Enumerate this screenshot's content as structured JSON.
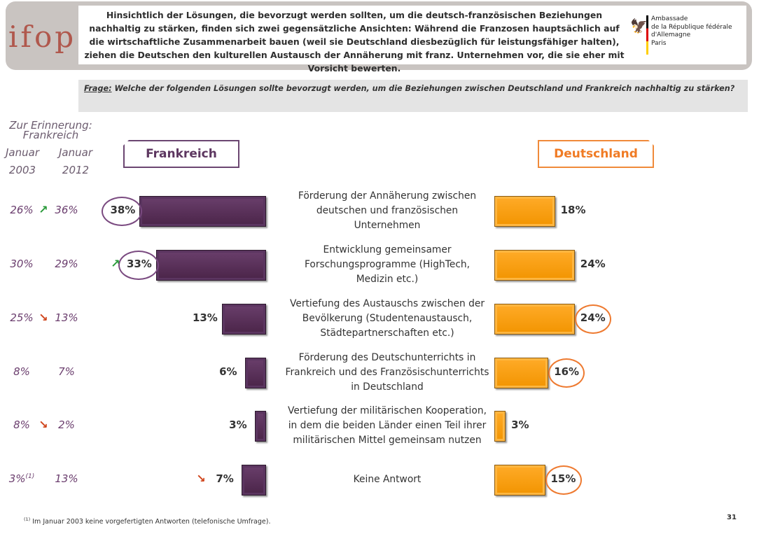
{
  "header": {
    "logo": "ifop",
    "text": "Hinsichtlich der Lösungen, die bevorzugt werden sollten, um die deutsch-französischen Beziehungen nachhaltig zu stärken, finden sich zwei gegensätzliche Ansichten: Während die Franzosen hauptsächlich auf die wirtschaftliche Zusammenarbeit bauen (weil sie Deutschland diesbezüglich für leistungsfähiger halten), ziehen die Deutschen den kulturellen Austausch der Annäherung mit franz. Unternehmen vor, die sie eher mit Vorsicht bewerten.",
    "embassy_lines": [
      "Ambassade",
      "de la République fédérale d'Allemagne",
      "Paris"
    ]
  },
  "question": {
    "label": "Frage:",
    "text": "Welche der folgenden Lösungen sollte bevorzugt werden, um die Beziehungen zwischen Deutschland und Frankreich nachhaltig zu stärken?"
  },
  "recall": {
    "title_line1": "Zur Erinnerung:",
    "title_line2": "Frankreich",
    "col1": [
      "Januar",
      "2003"
    ],
    "col2": [
      "Januar",
      "2012"
    ],
    "rows": [
      {
        "v2003": "26%",
        "v2012": "36%",
        "trend": "up",
        "footnote_mark": ""
      },
      {
        "v2003": "30%",
        "v2012": "29%",
        "trend": "",
        "footnote_mark": ""
      },
      {
        "v2003": "25%",
        "v2012": "13%",
        "trend": "down",
        "footnote_mark": ""
      },
      {
        "v2003": "8%",
        "v2012": "7%",
        "trend": "",
        "footnote_mark": ""
      },
      {
        "v2003": "8%",
        "v2012": "2%",
        "trend": "down",
        "footnote_mark": ""
      },
      {
        "v2003": "3%",
        "v2012": "13%",
        "trend": "",
        "footnote_mark": "(1)"
      }
    ]
  },
  "tabs": {
    "france": "Frankreich",
    "germany": "Deutschland"
  },
  "chart_data": {
    "type": "bar",
    "orientation": "horizontal-butterfly",
    "categories": [
      "Förderung der Annäherung zwischen deutschen und französischen Unternehmen",
      "Entwicklung gemeinsamer Forschungsprogramme (HighTech, Medizin etc.)",
      "Vertiefung des Austauschs zwischen der Bevölkerung (Studentenaustausch, Städtepartnerschaften etc.)",
      "Förderung des Deutschunterrichts in Frankreich und des Französischunterrichts in Deutschland",
      "Vertiefung der militärischen Kooperation, in dem die beiden Länder einen Teil ihrer militärischen Mittel gemeinsam nutzen",
      "Keine Antwort"
    ],
    "category_lines": [
      [
        "Förderung der Annäherung zwischen",
        "deutschen und französischen",
        "Unternehmen"
      ],
      [
        "Entwicklung gemeinsamer",
        "Forschungsprogramme (HighTech,",
        "Medizin etc.)"
      ],
      [
        "Vertiefung des Austauschs zwischen der",
        "Bevölkerung (Studentenaustausch,",
        "Städtepartnerschaften etc.)"
      ],
      [
        "Förderung des Deutschunterrichts in",
        "Frankreich und des Französischunterrichts",
        "in Deutschland"
      ],
      [
        "Vertiefung der militärischen Kooperation,",
        "in dem die beiden Länder einen Teil ihrer",
        "militärischen Mittel gemeinsam nutzen"
      ],
      [
        "Keine Antwort"
      ]
    ],
    "series": [
      {
        "name": "Frankreich",
        "values": [
          38,
          33,
          13,
          6,
          3,
          7
        ],
        "labels": [
          "38%",
          "33%",
          "13%",
          "6%",
          "3%",
          "7%"
        ],
        "color": "#5b3560",
        "highlighted": [
          true,
          true,
          false,
          false,
          false,
          false
        ],
        "trend": [
          "",
          "up",
          "",
          "",
          "",
          "down"
        ]
      },
      {
        "name": "Deutschland",
        "values": [
          18,
          24,
          24,
          16,
          3,
          15
        ],
        "labels": [
          "18%",
          "24%",
          "24%",
          "16%",
          "3%",
          "15%"
        ],
        "color": "#f7a21b",
        "highlighted": [
          false,
          false,
          true,
          true,
          false,
          true
        ],
        "trend": [
          "",
          "",
          "",
          "",
          "",
          ""
        ]
      }
    ],
    "xlim": [
      0,
      40
    ]
  },
  "footnote": {
    "mark": "(1)",
    "text": "Im Januar 2003 keine vorgefertigten Antworten (telefonische Umfrage)."
  },
  "page_number": "31"
}
